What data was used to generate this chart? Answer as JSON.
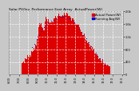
{
  "title": "Solar PV/Inv. Performance East Array  ActualPower(W)",
  "title_fontsize": 3.2,
  "bg_color": "#c8c8c8",
  "plot_bg_color": "#c8c8c8",
  "grid_color": "white",
  "bar_color": "#dd0000",
  "dot_color": "#0000dd",
  "legend_fontsize": 2.8,
  "legend_labels": [
    "Actual Power(W)",
    "Running Avg(W)"
  ],
  "legend_colors": [
    "#dd0000",
    "#0000dd"
  ],
  "n_points": 144,
  "y_max": 2000,
  "y_ticks": [
    0,
    400,
    800,
    1200,
    1600,
    2000
  ],
  "y_tick_labels": [
    "0",
    "400",
    "800",
    "1.2k",
    "1.6k",
    "2.0k"
  ],
  "tick_fontsize": 2.5,
  "x_tick_labels": [
    "6:00",
    "7:00",
    "8:00",
    "9:00",
    "10:0",
    "11:0",
    "12:0",
    "13:0",
    "14:0",
    "15:0",
    "16:0",
    "17:0",
    "18:0"
  ],
  "peak_value": 1900
}
